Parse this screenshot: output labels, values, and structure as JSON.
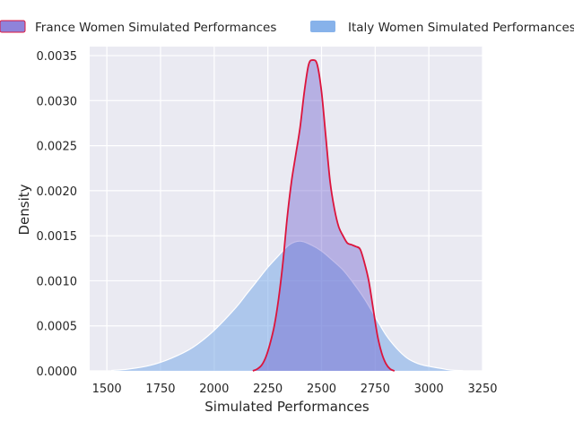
{
  "chart_data": {
    "type": "area",
    "xlabel": "Simulated Performances",
    "ylabel": "Density",
    "xlim": [
      1420,
      3250
    ],
    "ylim": [
      0,
      0.0036
    ],
    "x_ticks": [
      1500,
      1750,
      2000,
      2250,
      2500,
      2750,
      3000,
      3250
    ],
    "y_ticks": [
      0.0,
      0.0005,
      0.001,
      0.0015,
      0.002,
      0.0025,
      0.003,
      0.0035
    ],
    "x_tick_labels": [
      "1500",
      "1750",
      "2000",
      "2250",
      "2500",
      "2750",
      "3000",
      "3250"
    ],
    "y_tick_labels": [
      "0.0000",
      "0.0005",
      "0.0010",
      "0.0015",
      "0.0020",
      "0.0025",
      "0.0030",
      "0.0035"
    ],
    "grid": true,
    "legend_position": "top",
    "series": [
      {
        "name": "France Women Simulated Performances",
        "fill": "#6a5acd",
        "line": "#dc143c",
        "fill_opacity": 0.4,
        "points": [
          [
            2180,
            0.0
          ],
          [
            2200,
            2e-05
          ],
          [
            2220,
            6e-05
          ],
          [
            2240,
            0.00015
          ],
          [
            2260,
            0.0003
          ],
          [
            2280,
            0.0005
          ],
          [
            2300,
            0.0008
          ],
          [
            2320,
            0.0012
          ],
          [
            2340,
            0.0017
          ],
          [
            2360,
            0.0021
          ],
          [
            2380,
            0.0024
          ],
          [
            2400,
            0.0027
          ],
          [
            2420,
            0.0031
          ],
          [
            2440,
            0.0034
          ],
          [
            2460,
            0.00345
          ],
          [
            2480,
            0.0034
          ],
          [
            2500,
            0.0031
          ],
          [
            2520,
            0.0026
          ],
          [
            2540,
            0.0021
          ],
          [
            2560,
            0.0018
          ],
          [
            2580,
            0.0016
          ],
          [
            2600,
            0.0015
          ],
          [
            2620,
            0.00142
          ],
          [
            2640,
            0.0014
          ],
          [
            2660,
            0.00138
          ],
          [
            2680,
            0.00135
          ],
          [
            2700,
            0.0012
          ],
          [
            2720,
            0.001
          ],
          [
            2740,
            0.0007
          ],
          [
            2760,
            0.0004
          ],
          [
            2780,
            0.0002
          ],
          [
            2800,
            8e-05
          ],
          [
            2820,
            2e-05
          ],
          [
            2840,
            0.0
          ]
        ]
      },
      {
        "name": "Italy Women Simulated Performances",
        "fill": "#7aaae8",
        "line": "#ffffff",
        "fill_opacity": 0.55,
        "points": [
          [
            1520,
            5e-06
          ],
          [
            1600,
            2e-05
          ],
          [
            1700,
            6e-05
          ],
          [
            1800,
            0.00014
          ],
          [
            1900,
            0.00026
          ],
          [
            2000,
            0.00045
          ],
          [
            2100,
            0.0007
          ],
          [
            2150,
            0.00085
          ],
          [
            2200,
            0.001
          ],
          [
            2250,
            0.00115
          ],
          [
            2300,
            0.00128
          ],
          [
            2350,
            0.0014
          ],
          [
            2400,
            0.00144
          ],
          [
            2450,
            0.0014
          ],
          [
            2500,
            0.00133
          ],
          [
            2550,
            0.00123
          ],
          [
            2600,
            0.00112
          ],
          [
            2650,
            0.00097
          ],
          [
            2700,
            0.0008
          ],
          [
            2750,
            0.0006
          ],
          [
            2800,
            0.0004
          ],
          [
            2850,
            0.00025
          ],
          [
            2900,
            0.00014
          ],
          [
            2950,
            8e-05
          ],
          [
            3000,
            5e-05
          ],
          [
            3050,
            3e-05
          ],
          [
            3100,
            1e-05
          ],
          [
            3160,
            3e-06
          ]
        ]
      }
    ]
  }
}
